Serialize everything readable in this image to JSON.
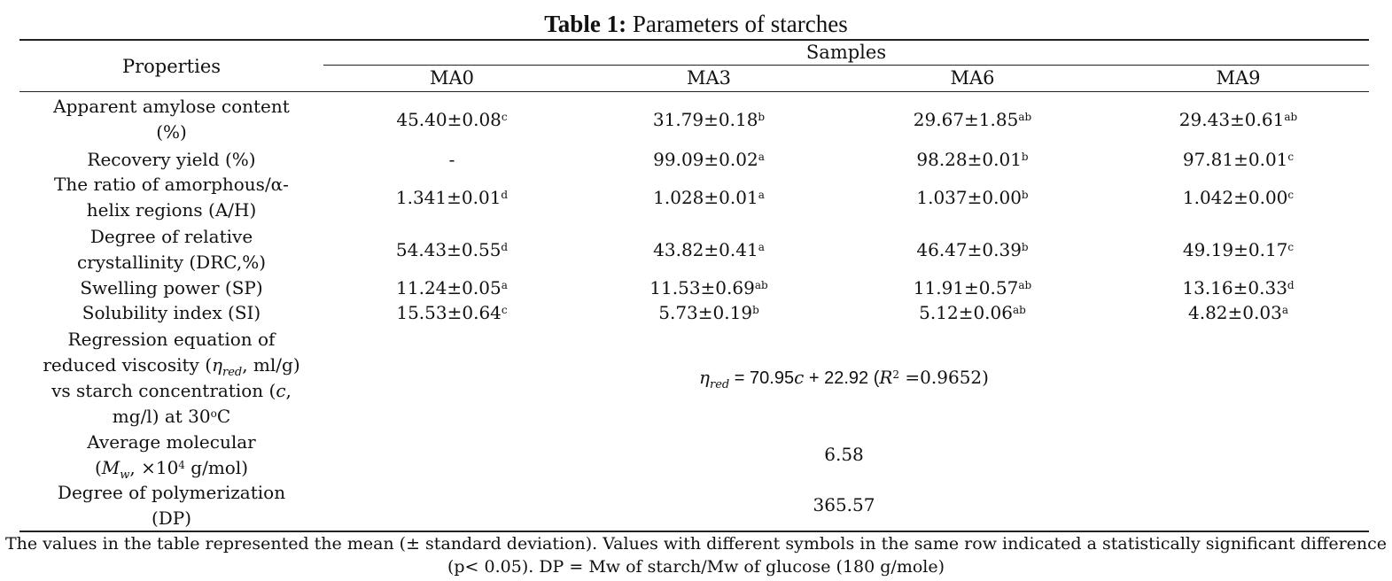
{
  "caption": {
    "label": "Table 1:",
    "title": "Parameters of starches"
  },
  "header": {
    "properties": "Properties",
    "samples": "Samples",
    "columns": [
      "MA0",
      "MA3",
      "MA6",
      "MA9"
    ]
  },
  "rows": [
    {
      "property": [
        "Apparent amylose content",
        "(%)"
      ],
      "values": [
        {
          "v": "45.40±0.08",
          "s": "c"
        },
        {
          "v": "31.79±0.18",
          "s": "b"
        },
        {
          "v": "29.67±1.85",
          "s": "ab"
        },
        {
          "v": "29.43±0.61",
          "s": "ab"
        }
      ]
    },
    {
      "property": [
        "Recovery yield (%)"
      ],
      "values": [
        {
          "v": "-",
          "s": ""
        },
        {
          "v": "99.09±0.02",
          "s": "a"
        },
        {
          "v": "98.28±0.01",
          "s": "b"
        },
        {
          "v": "97.81±0.01",
          "s": "c"
        }
      ]
    },
    {
      "property": [
        "The ratio of amorphous/α-",
        "helix regions (A/H)"
      ],
      "values": [
        {
          "v": "1.341±0.01",
          "s": "d"
        },
        {
          "v": "1.028±0.01",
          "s": "a"
        },
        {
          "v": "1.037±0.00",
          "s": "b"
        },
        {
          "v": "1.042±0.00",
          "s": "c"
        }
      ]
    },
    {
      "property": [
        "Degree of relative",
        "crystallinity (DRC,%)"
      ],
      "values": [
        {
          "v": "54.43±0.55",
          "s": "d"
        },
        {
          "v": "43.82±0.41",
          "s": "a"
        },
        {
          "v": "46.47±0.39",
          "s": "b"
        },
        {
          "v": "49.19±0.17",
          "s": "c"
        }
      ]
    },
    {
      "property": [
        "Swelling power (SP)"
      ],
      "values": [
        {
          "v": "11.24±0.05",
          "s": "a"
        },
        {
          "v": "11.53±0.69",
          "s": "ab"
        },
        {
          "v": "11.91±0.57",
          "s": "ab"
        },
        {
          "v": "13.16±0.33",
          "s": "d"
        }
      ]
    },
    {
      "property": [
        "Solubility index (SI)"
      ],
      "values": [
        {
          "v": "15.53±0.64",
          "s": "c"
        },
        {
          "v": "5.73±0.19",
          "s": "b"
        },
        {
          "v": "5.12±0.06",
          "s": "ab"
        },
        {
          "v": "4.82±0.03",
          "s": "a"
        }
      ]
    }
  ],
  "regression": {
    "property_lines": [
      [
        "Regression equation of"
      ],
      [
        "reduced viscosity (",
        "η",
        "red",
        ", ml/g)"
      ],
      [
        "vs starch concentration (",
        "c",
        ","
      ],
      [
        "mg/l) at 30",
        "o",
        "C"
      ]
    ],
    "equation": {
      "eta": "η",
      "sub": "red",
      "mid": " = 70.95",
      "c": "c",
      "rest": " + 22.92 (",
      "R": "R",
      "sup": "2",
      "end": " =0.9652)"
    }
  },
  "mw": {
    "line1": "Average molecular",
    "line2": {
      "open": "(",
      "M": "M",
      "sub": "w",
      "mid": ", ×10",
      "sup": "4",
      "end": " g/mol)"
    },
    "value": "6.58"
  },
  "dp": {
    "lines": [
      "Degree of polymerization",
      "(DP)"
    ],
    "value": "365.57"
  },
  "footnote": [
    "The values in the table represented the mean (± standard deviation). Values with different symbols in the same row indicated a statistically significant difference",
    "(p< 0.05). DP = Mw of starch/Mw of glucose (180 g/mole)"
  ]
}
